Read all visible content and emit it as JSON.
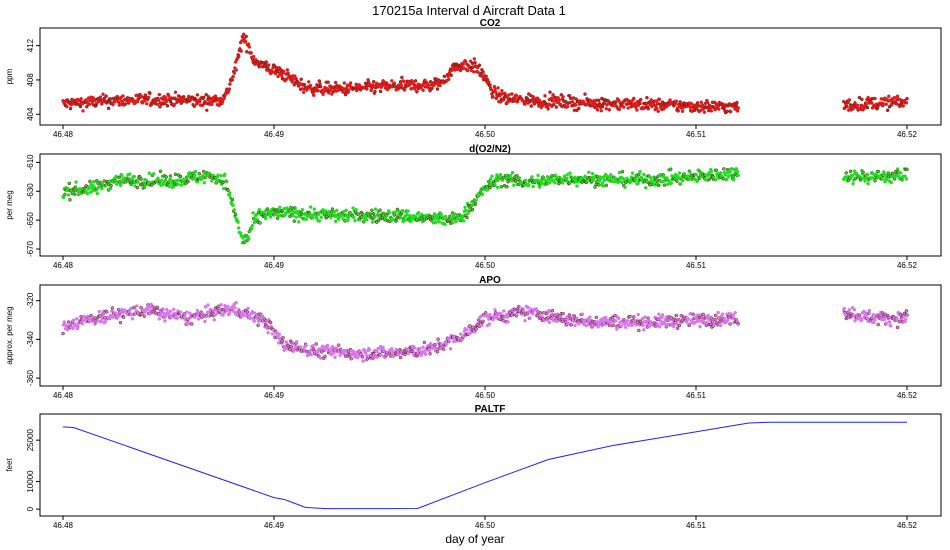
{
  "title": "170215a   Interval d Aircraft Data 1",
  "xlabel": "day of year",
  "chart_data": [
    {
      "type": "scatter",
      "title": "CO2",
      "ylabel": "ppm",
      "yticks": [
        404,
        408,
        412
      ],
      "ylim": [
        403.2,
        413.6
      ],
      "xlim": [
        46.48,
        46.52
      ],
      "xticks": [
        "46.48",
        "46.49",
        "46.50",
        "46.51",
        "46.52"
      ],
      "color": "#e11b1b",
      "segments": [
        {
          "x": [
            46.48,
            46.4825,
            46.485,
            46.487,
            46.4877,
            46.4882,
            46.4885,
            46.4888,
            46.489,
            46.4895,
            46.4905,
            46.4915,
            46.493,
            46.495,
            46.497,
            46.4975,
            46.498,
            46.4985,
            46.499,
            46.4995,
            46.5,
            46.5003,
            46.501,
            46.503,
            46.505,
            46.507,
            46.509,
            46.511,
            46.512
          ],
          "y": [
            405.2,
            405.6,
            405.7,
            405.5,
            406.0,
            409.5,
            412.8,
            412.0,
            410.5,
            409.6,
            408.6,
            407.1,
            406.9,
            407.2,
            407.4,
            407.3,
            407.8,
            409.4,
            409.8,
            409.6,
            408.4,
            406.6,
            405.8,
            405.5,
            405.3,
            405.2,
            405.0,
            404.9,
            404.8
          ]
        },
        {
          "x": [
            46.517,
            46.5185,
            46.52
          ],
          "y": [
            405.0,
            405.3,
            405.4
          ]
        }
      ]
    },
    {
      "type": "scatter",
      "title": "d(O2/N2)",
      "ylabel": "per meg",
      "yticks": [
        -670,
        -650,
        -630,
        -610
      ],
      "ylim": [
        -672,
        -607
      ],
      "xlim": [
        46.48,
        46.52
      ],
      "xticks": [
        "46.48",
        "46.49",
        "46.50",
        "46.51",
        "46.52"
      ],
      "color": "#22dd22",
      "segments": [
        {
          "x": [
            46.48,
            46.4815,
            46.4825,
            46.485,
            46.487,
            46.4877,
            46.4882,
            46.4885,
            46.4888,
            46.489,
            46.4895,
            46.4905,
            46.492,
            46.494,
            46.496,
            46.4975,
            46.4985,
            46.499,
            46.5,
            46.5007,
            46.502,
            46.504,
            46.506,
            46.508,
            46.51,
            46.512
          ],
          "y": [
            -630,
            -628,
            -622,
            -623,
            -619,
            -623,
            -648,
            -664,
            -662,
            -652,
            -646,
            -645,
            -646,
            -647,
            -647,
            -649,
            -650,
            -646,
            -628,
            -621,
            -624,
            -621,
            -622,
            -622,
            -620,
            -617
          ]
        },
        {
          "x": [
            46.517,
            46.5185,
            46.52
          ],
          "y": [
            -619,
            -620,
            -619
          ]
        }
      ]
    },
    {
      "type": "scatter",
      "title": "APO",
      "ylabel": "approx. per meg",
      "yticks": [
        -360,
        -340,
        -320
      ],
      "ylim": [
        -362,
        -314
      ],
      "xlim": [
        46.48,
        46.52
      ],
      "xticks": [
        "46.48",
        "46.49",
        "46.50",
        "46.51",
        "46.52"
      ],
      "color": "#d977ee",
      "segments": [
        {
          "x": [
            46.48,
            46.482,
            46.484,
            46.486,
            46.488,
            46.4895,
            46.4905,
            46.492,
            46.494,
            46.496,
            46.4975,
            46.499,
            46.5,
            46.502,
            46.504,
            46.506,
            46.508,
            46.51,
            46.512
          ],
          "y": [
            -333,
            -328,
            -325,
            -329,
            -324,
            -330,
            -343,
            -346,
            -347,
            -347,
            -345,
            -338,
            -329,
            -326,
            -330,
            -331,
            -331,
            -330,
            -329
          ]
        },
        {
          "x": [
            46.517,
            46.5185,
            46.52
          ],
          "y": [
            -326,
            -329,
            -329
          ]
        }
      ]
    },
    {
      "type": "line",
      "title": "PALTF",
      "ylabel": "feet",
      "yticks": [
        0,
        10000,
        25000
      ],
      "ylim": [
        -1000,
        33000
      ],
      "xlim": [
        46.48,
        46.52
      ],
      "xticks": [
        "46.48",
        "46.49",
        "46.50",
        "46.51",
        "46.52"
      ],
      "color": "#2020ff",
      "x": [
        46.48,
        46.4805,
        46.49,
        46.4905,
        46.4915,
        46.4925,
        46.4945,
        46.4968,
        46.5,
        46.503,
        46.506,
        46.5092,
        46.5125,
        46.5135,
        46.52
      ],
      "y": [
        29800,
        29600,
        4200,
        3500,
        600,
        200,
        200,
        250,
        9600,
        18000,
        23000,
        27000,
        31200,
        31500,
        31500
      ]
    }
  ]
}
